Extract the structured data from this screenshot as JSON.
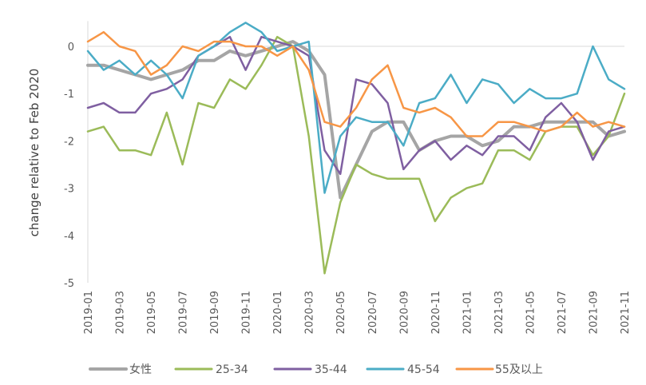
{
  "chart_data": {
    "type": "line",
    "title": "",
    "xlabel": "",
    "ylabel": "change relative to Feb 2020",
    "ylim": [
      -5,
      0.5
    ],
    "yticks": [
      0,
      -1,
      -2,
      -3,
      -4,
      -5
    ],
    "grid": false,
    "legend_position": "bottom",
    "x": [
      "2019-01",
      "2019-02",
      "2019-03",
      "2019-04",
      "2019-05",
      "2019-06",
      "2019-07",
      "2019-08",
      "2019-09",
      "2019-10",
      "2019-11",
      "2019-12",
      "2020-01",
      "2020-02",
      "2020-03",
      "2020-04",
      "2020-05",
      "2020-06",
      "2020-07",
      "2020-08",
      "2020-09",
      "2020-10",
      "2020-11",
      "2020-12",
      "2021-01",
      "2021-02",
      "2021-03",
      "2021-04",
      "2021-05",
      "2021-06",
      "2021-07",
      "2021-08",
      "2021-09",
      "2021-10",
      "2021-11"
    ],
    "x_tick_labels": [
      "2019-01",
      "2019-03",
      "2019-05",
      "2019-07",
      "2019-09",
      "2019-11",
      "2020-01",
      "2020-03",
      "2020-05",
      "2020-07",
      "2020-09",
      "2020-11",
      "2021-01",
      "2021-03",
      "2021-05",
      "2021-07",
      "2021-09",
      "2021-11"
    ],
    "series": [
      {
        "name": "女性",
        "color": "#a5a5a5",
        "width": 4,
        "values": [
          -0.4,
          -0.4,
          -0.5,
          -0.6,
          -0.7,
          -0.6,
          -0.5,
          -0.3,
          -0.3,
          -0.1,
          -0.2,
          -0.1,
          0.0,
          0.1,
          -0.1,
          -0.6,
          -3.2,
          -2.5,
          -1.8,
          -1.6,
          -1.6,
          -2.2,
          -2.0,
          -1.9,
          -1.9,
          -2.1,
          -2.0,
          -1.7,
          -1.7,
          -1.6,
          -1.6,
          -1.6,
          -1.6,
          -1.9,
          -1.8
        ]
      },
      {
        "name": "25-34",
        "color": "#9bbb59",
        "width": 2.5,
        "values": [
          -1.8,
          -1.7,
          -2.2,
          -2.2,
          -2.3,
          -1.4,
          -2.5,
          -1.2,
          -1.3,
          -0.7,
          -0.9,
          -0.4,
          0.2,
          0.0,
          -1.9,
          -4.8,
          -3.3,
          -2.5,
          -2.7,
          -2.8,
          -2.8,
          -2.8,
          -3.7,
          -3.2,
          -3.0,
          -2.9,
          -2.2,
          -2.2,
          -2.4,
          -1.8,
          -1.7,
          -1.7,
          -2.3,
          -1.9,
          -1.0
        ]
      },
      {
        "name": "35-44",
        "color": "#7f5fa1",
        "width": 2.5,
        "values": [
          -1.3,
          -1.2,
          -1.4,
          -1.4,
          -1.0,
          -0.9,
          -0.7,
          -0.2,
          0.0,
          0.2,
          -0.5,
          0.2,
          0.1,
          0.0,
          -0.2,
          -2.2,
          -2.7,
          -0.7,
          -0.8,
          -1.2,
          -2.6,
          -2.2,
          -2.0,
          -2.4,
          -2.1,
          -2.3,
          -1.9,
          -1.9,
          -2.2,
          -1.5,
          -1.2,
          -1.6,
          -2.4,
          -1.8,
          -1.7
        ]
      },
      {
        "name": "45-54",
        "color": "#4bacc6",
        "width": 2.5,
        "values": [
          -0.1,
          -0.5,
          -0.3,
          -0.6,
          -0.3,
          -0.6,
          -1.1,
          -0.2,
          0.0,
          0.3,
          0.5,
          0.3,
          -0.1,
          0.0,
          0.1,
          -3.1,
          -1.9,
          -1.5,
          -1.6,
          -1.6,
          -2.1,
          -1.2,
          -1.1,
          -0.6,
          -1.2,
          -0.7,
          -0.8,
          -1.2,
          -0.9,
          -1.1,
          -1.1,
          -1.0,
          0.0,
          -0.7,
          -0.9
        ]
      },
      {
        "name": "55及以上",
        "color": "#f79646",
        "width": 2.5,
        "values": [
          0.1,
          0.3,
          0.0,
          -0.1,
          -0.6,
          -0.4,
          0.0,
          -0.1,
          0.1,
          0.1,
          0.0,
          0.0,
          -0.2,
          0.0,
          -0.5,
          -1.6,
          -1.7,
          -1.3,
          -0.7,
          -0.4,
          -1.3,
          -1.4,
          -1.3,
          -1.5,
          -1.9,
          -1.9,
          -1.6,
          -1.6,
          -1.7,
          -1.8,
          -1.7,
          -1.4,
          -1.7,
          -1.6,
          -1.7
        ]
      }
    ]
  }
}
